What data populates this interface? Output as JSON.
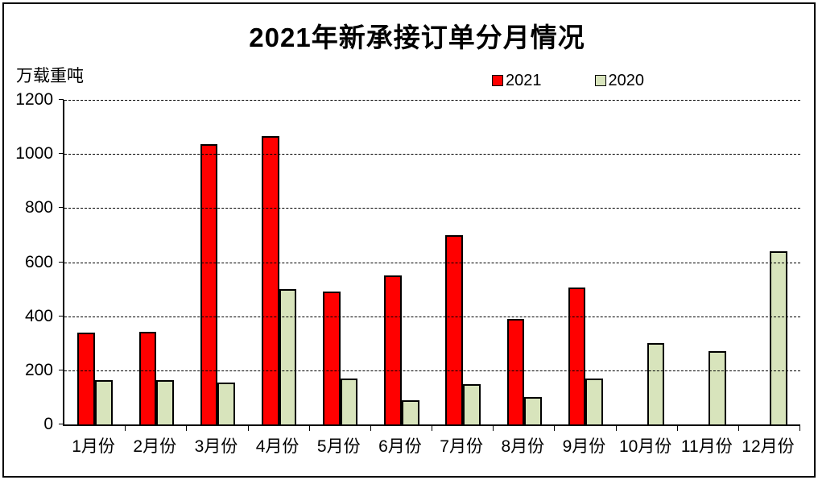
{
  "title": "2021年新承接订单分月情况",
  "y_axis": {
    "unit_label": "万载重吨",
    "ticks": [
      1200,
      1000,
      800,
      600,
      400,
      200,
      0
    ],
    "max": 1200
  },
  "legend": [
    {
      "label": "2021",
      "color": "#FF0000"
    },
    {
      "label": "2020",
      "color": "#D8E4BC"
    }
  ],
  "chart_data": {
    "type": "bar",
    "title": "2021年新承接订单分月情况",
    "ylabel": "万载重吨",
    "xlabel": "",
    "ylim": [
      0,
      1200
    ],
    "ytick_step": 200,
    "grid": "horizontal-dashed",
    "legend_position": "top",
    "categories": [
      "1月份",
      "2月份",
      "3月份",
      "4月份",
      "5月份",
      "6月份",
      "7月份",
      "8月份",
      "9月份",
      "10月份",
      "11月份",
      "12月份"
    ],
    "series": [
      {
        "name": "2021",
        "color": "#FF0000",
        "values": [
          340,
          342,
          1035,
          1065,
          490,
          550,
          700,
          390,
          505,
          null,
          null,
          null
        ]
      },
      {
        "name": "2020",
        "color": "#D8E4BC",
        "values": [
          165,
          165,
          155,
          500,
          170,
          90,
          150,
          100,
          170,
          300,
          270,
          640
        ]
      }
    ]
  }
}
